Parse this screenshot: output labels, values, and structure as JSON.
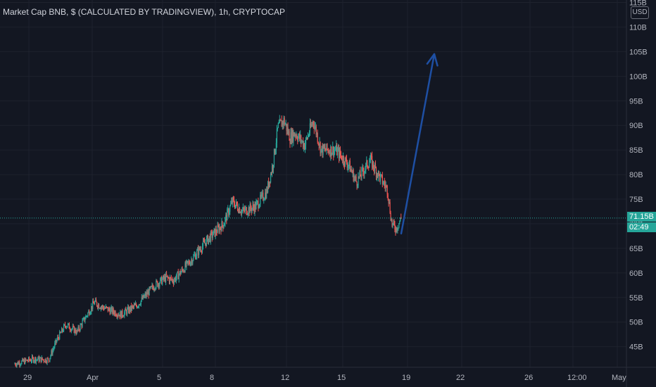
{
  "title": "Market Cap BNB, $ (CALCULATED BY TRADINGVIEW), 1h, CRYPTOCAP",
  "currency": "USD",
  "current_price_label": "71.15B",
  "countdown_label": "02:49",
  "colors": {
    "background": "#131722",
    "up": "#26a69a",
    "down": "#ef5350",
    "grid": "#1e222d",
    "axis_text": "#b2b5be",
    "price_line": "#26a69a",
    "arrow": "#1e4fa3"
  },
  "chart_data": {
    "type": "candlestick",
    "title": "Market Cap BNB, $ (CALCULATED BY TRADINGVIEW), 1h, CRYPTOCAP",
    "y_axis_labels": [
      "45B",
      "50B",
      "55B",
      "60B",
      "65B",
      "70B",
      "75B",
      "80B",
      "85B",
      "90B",
      "95B",
      "100B",
      "105B",
      "110B",
      "115B"
    ],
    "y_axis_values": [
      45,
      50,
      55,
      60,
      65,
      70,
      75,
      80,
      85,
      90,
      95,
      100,
      105,
      110,
      115
    ],
    "ylim": [
      40.8,
      115.5
    ],
    "x_axis_labels": [
      "29",
      "Apr",
      "5",
      "8",
      "12",
      "15",
      "19",
      "22",
      "26",
      "12:00",
      "May"
    ],
    "current_value": 71.15,
    "grid": true,
    "annotation": {
      "type": "arrow",
      "direction": "up",
      "from_value": 68,
      "to_value": 104.5
    },
    "price_path": [
      {
        "x": 0.0,
        "y": 41.5
      },
      {
        "x": 2.3,
        "y": 42.5
      },
      {
        "x": 4.0,
        "y": 42.3
      },
      {
        "x": 5.0,
        "y": 46.5
      },
      {
        "x": 6.0,
        "y": 49.5
      },
      {
        "x": 7.3,
        "y": 48.0
      },
      {
        "x": 9.3,
        "y": 54.0
      },
      {
        "x": 10.3,
        "y": 53.0
      },
      {
        "x": 12.4,
        "y": 51.5
      },
      {
        "x": 14.3,
        "y": 53.5
      },
      {
        "x": 16.3,
        "y": 57.5
      },
      {
        "x": 17.6,
        "y": 59.0
      },
      {
        "x": 18.5,
        "y": 58.5
      },
      {
        "x": 20.5,
        "y": 62.5
      },
      {
        "x": 22.3,
        "y": 66.5
      },
      {
        "x": 24.3,
        "y": 70.0
      },
      {
        "x": 25.3,
        "y": 74.5
      },
      {
        "x": 26.5,
        "y": 72.5
      },
      {
        "x": 28.0,
        "y": 73.5
      },
      {
        "x": 29.3,
        "y": 76.5
      },
      {
        "x": 30.0,
        "y": 82.0
      },
      {
        "x": 30.6,
        "y": 89.5
      },
      {
        "x": 31.3,
        "y": 91.0
      },
      {
        "x": 32.0,
        "y": 87.5
      },
      {
        "x": 32.6,
        "y": 88.5
      },
      {
        "x": 33.7,
        "y": 86.0
      },
      {
        "x": 34.7,
        "y": 91.0
      },
      {
        "x": 35.6,
        "y": 85.0
      },
      {
        "x": 37.3,
        "y": 85.0
      },
      {
        "x": 38.8,
        "y": 82.0
      },
      {
        "x": 39.7,
        "y": 78.5
      },
      {
        "x": 41.3,
        "y": 83.0
      },
      {
        "x": 42.4,
        "y": 79.5
      },
      {
        "x": 43.3,
        "y": 77.0
      },
      {
        "x": 43.8,
        "y": 70.0
      },
      {
        "x": 44.3,
        "y": 69.0
      },
      {
        "x": 44.9,
        "y": 71.15
      }
    ]
  }
}
